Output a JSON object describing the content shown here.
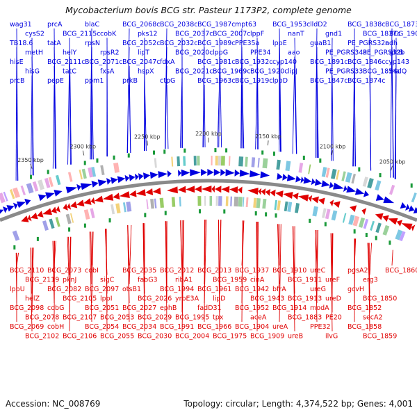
{
  "title": "Mycobacterium bovis BCG str. Pasteur 1173P2, complete genome",
  "accession": "Accession: NC_008769",
  "summary": "Topology: circular; Length: 4,374,522 bp; Genes: 4,001",
  "colors": {
    "forward": "#0000e0",
    "reverse": "#e00000",
    "backbone": "#8a8a8a",
    "tick_label": "#333333"
  },
  "scale_ticks": [
    "2350 kbp",
    "2300 kbp",
    "2250 kbp",
    "2200 kbp",
    "2150 kbp",
    "2100 kbp",
    "2050 kbp"
  ],
  "forward_genes": [
    "wag31",
    "cysS2",
    "TB18.6",
    "metH",
    "hisE",
    "hisG",
    "prcB",
    "prcA",
    "BCG_2115c",
    "tatA",
    "helY",
    "BCG_2111c",
    "tatC",
    "pepE",
    "blaC",
    "cobK",
    "rpsN",
    "rpsR2",
    "BCG_2071c",
    "fxsA",
    "ppm1",
    "BCG_2068c",
    "pks12",
    "BCG_2052c",
    "lipT",
    "BCG_2047c",
    "hspX",
    "prkB",
    "BCG_2038c",
    "BCG_2037c",
    "BCG_2032c",
    "BCG_2020c",
    "fdxA",
    "BCG_2021c",
    "ctpG",
    "BCG_1987c",
    "BCG_2007c",
    "BCG_1989c",
    "lppG",
    "BCG_1981c",
    "BCG_1969c",
    "BCG_1963c",
    "mpt63",
    "lppF",
    "PPE35a",
    "PPE34",
    "BCG_1932c",
    "BCG_1920c",
    "BCG_1919c",
    "BCG_1953c",
    "nanT",
    "lppE",
    "aao",
    "cyp140",
    "lipJ",
    "lppD",
    "lldD2",
    "gnd1",
    "guaB1",
    "PE_PGRS34a",
    "BCG_1891c",
    "PE_PGRS33",
    "BCG_1847c",
    "BCG_1838c",
    "BCG_1837c",
    "PE_PGRS32a",
    "PE_PGRS32b",
    "BCG_1846c",
    "BCG_1854c",
    "BCG_1874c",
    "BCG_1873c",
    "BCG_1900c",
    "ndh",
    "glcB",
    "cyp143",
    "malQ"
  ],
  "reverse_genes": [
    "BCG_2110",
    "BCG_2119",
    "lppU",
    "helZ",
    "BCG_2098",
    "BCG_2078",
    "BCG_2069",
    "BCG_2102",
    "BCG_2073",
    "pknJ",
    "BCG_2082",
    "BCG_2105",
    "cobG",
    "BCG_2107",
    "cobH",
    "BCG_2106",
    "cobI",
    "sigC",
    "BCG_2097",
    "lppI",
    "BCG_2051",
    "BCG_2053",
    "BCG_2054",
    "BCG_2055",
    "BCG_2035",
    "fabG3",
    "otsB1",
    "BCG_2026",
    "BCG_2027",
    "BCG_2029",
    "BCG_2034",
    "BCG_2030",
    "BCG_2012",
    "ribA1",
    "BCG_1994",
    "yrbE3A",
    "ephB",
    "BCG_1995",
    "BCG_1991",
    "BCG_2004",
    "BCG_2013",
    "BCG_1959",
    "BCG_1961",
    "lipD",
    "fadD31",
    "tpx",
    "BCG_1966",
    "BCG_1975",
    "BCG_1937",
    "cinA",
    "BCG_1942",
    "BCG_1943",
    "BCG_1952",
    "aceA",
    "BCG_1904",
    "BCG_1909",
    "BCG_1910",
    "BCG_1911",
    "bfrA",
    "BCG_1913",
    "BCG_1914",
    "BCG_1883",
    "ureA",
    "ureB",
    "ureC",
    "ureF",
    "ureG",
    "ureD",
    "modA",
    "PE20",
    "PPE32",
    "ilvG",
    "pgsA2",
    "erg3",
    "gcvH",
    "BCG_1850",
    "BCG_1852",
    "secA2",
    "BCG_1858",
    "BCG_1859",
    "BCG_1860"
  ]
}
